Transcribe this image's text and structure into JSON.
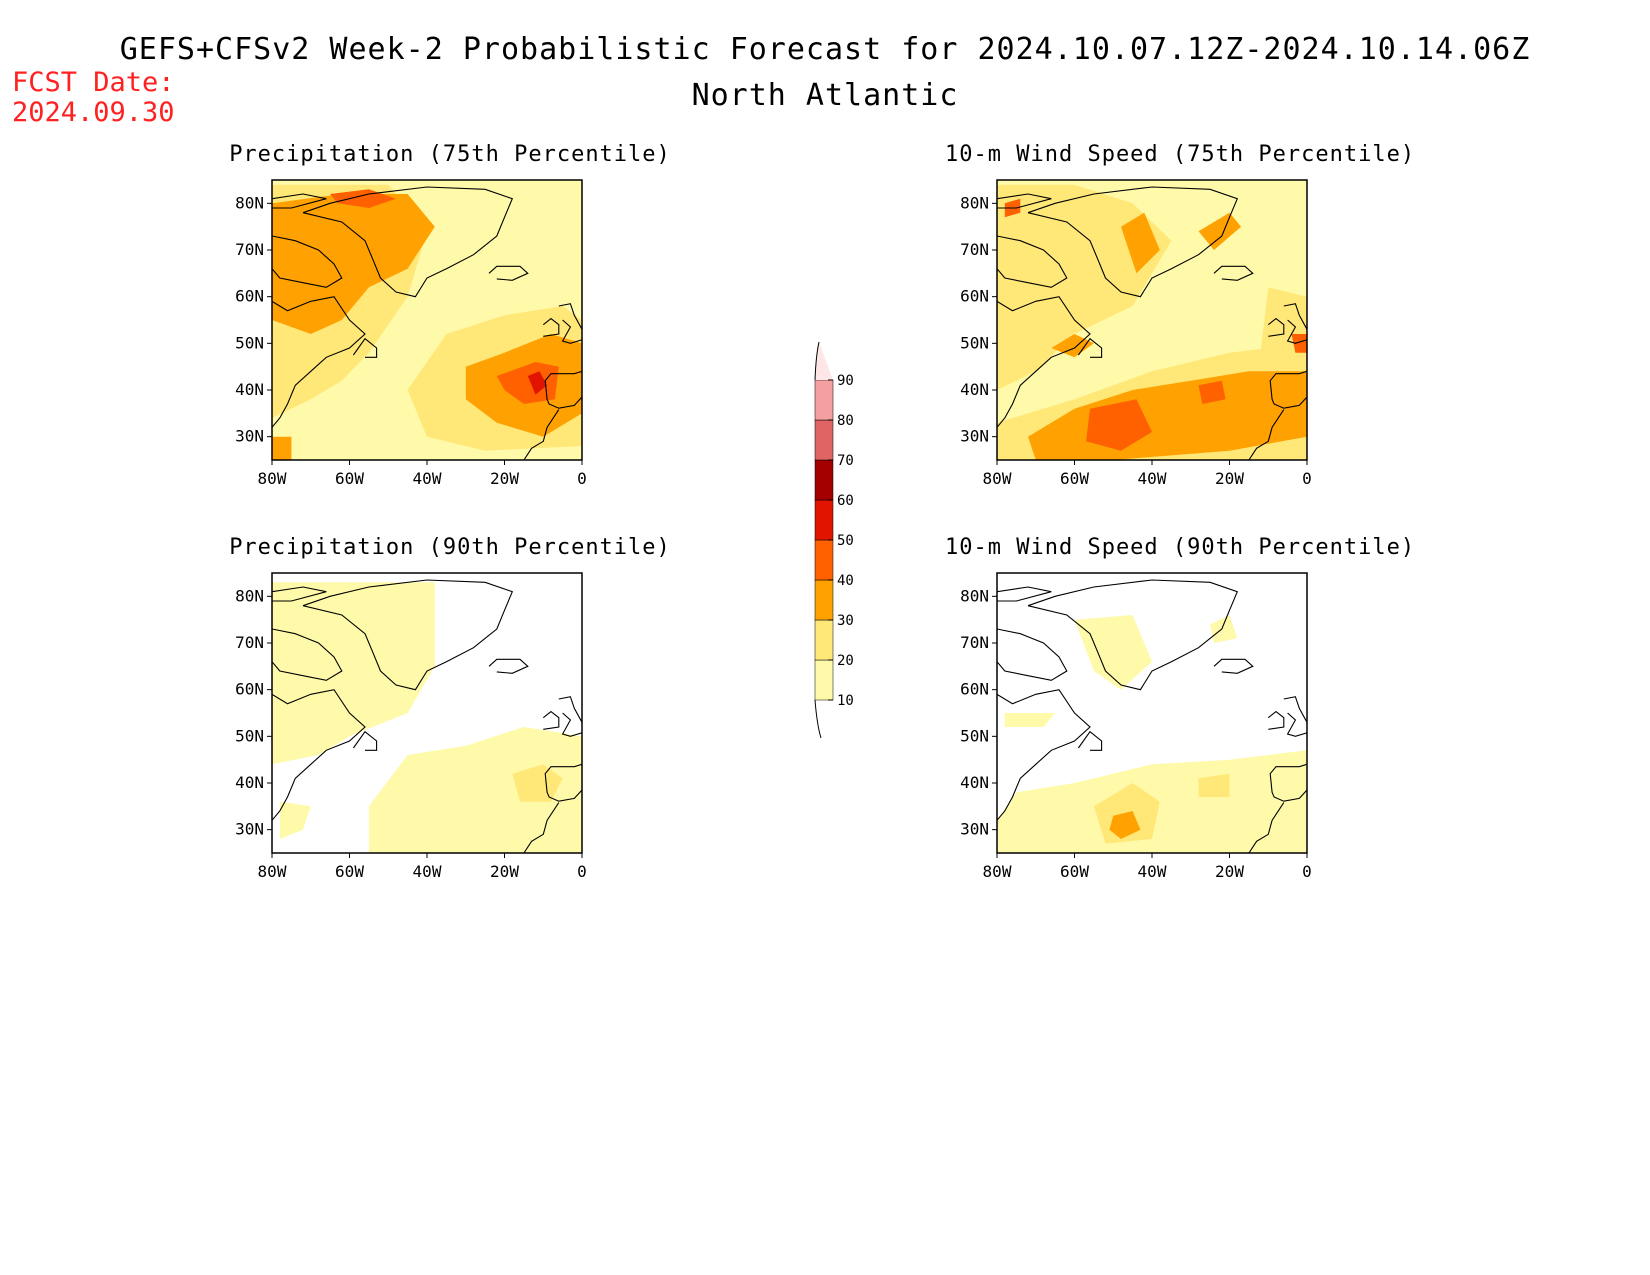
{
  "title": "GEFS+CFSv2 Week-2 Probabilistic Forecast for 2024.10.07.12Z-2024.10.14.06Z",
  "subtitle": "North Atlantic",
  "forecast_date_label": "FCST Date:",
  "forecast_date_value": "2024.09.30",
  "axes": {
    "lat_ticks": [
      "80N",
      "70N",
      "60N",
      "50N",
      "40N",
      "30N"
    ],
    "lon_ticks": [
      "80W",
      "60W",
      "40W",
      "20W",
      "0"
    ]
  },
  "colorbar": {
    "levels": [
      "10",
      "20",
      "30",
      "40",
      "50",
      "60",
      "70",
      "80",
      "90"
    ],
    "colors": [
      "#fffaaa",
      "#ffe878",
      "#ffa100",
      "#ff6100",
      "#e11400",
      "#a50000",
      "#e16464",
      "#f5a0a0",
      "#ffe6e6"
    ]
  },
  "panels": [
    {
      "title": "Precipitation (75th Percentile)",
      "field": "precip75"
    },
    {
      "title": "10-m Wind Speed (75th Percentile)",
      "field": "wind75"
    },
    {
      "title": "Precipitation (90th Percentile)",
      "field": "precip90"
    },
    {
      "title": "10-m Wind Speed (90th Percentile)",
      "field": "wind90"
    }
  ]
}
